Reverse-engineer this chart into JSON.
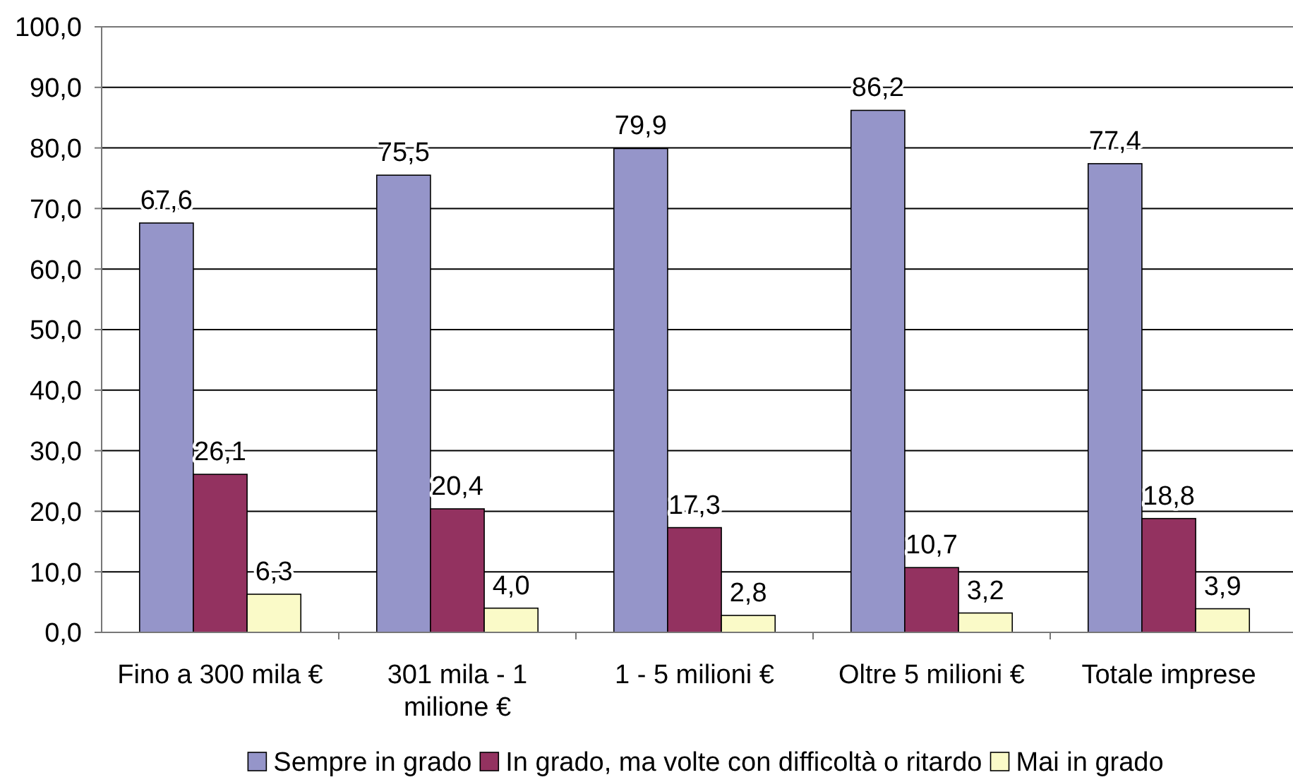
{
  "chart_data": {
    "type": "bar",
    "categories": [
      "Fino a 300 mila €",
      "301 mila - 1 milione €",
      "1 - 5 milioni €",
      "Oltre 5 milioni €",
      "Totale imprese"
    ],
    "series": [
      {
        "name": "Sempre in grado",
        "color": "#9595c9",
        "values": [
          67.6,
          75.5,
          79.9,
          86.2,
          77.4
        ],
        "value_labels": [
          "67,6",
          "75,5",
          "79,9",
          "86,2",
          "77,4"
        ]
      },
      {
        "name": "In grado, ma volte con difficoltà o ritardo",
        "color": "#933260",
        "values": [
          26.1,
          20.4,
          17.3,
          10.7,
          18.8
        ],
        "value_labels": [
          "26,1",
          "20,4",
          "17,3",
          "10,7",
          "18,8"
        ]
      },
      {
        "name": "Mai in grado",
        "color": "#fafac8",
        "values": [
          6.3,
          4.0,
          2.8,
          3.2,
          3.9
        ],
        "value_labels": [
          "6,3",
          "4,0",
          "2,8",
          "3,2",
          "3,9"
        ]
      }
    ],
    "ylim": [
      0,
      100
    ],
    "yticks": [
      {
        "value": 0,
        "label": "0,0"
      },
      {
        "value": 10,
        "label": "10,0"
      },
      {
        "value": 20,
        "label": "20,0"
      },
      {
        "value": 30,
        "label": "30,0"
      },
      {
        "value": 40,
        "label": "40,0"
      },
      {
        "value": 50,
        "label": "50,0"
      },
      {
        "value": 60,
        "label": "60,0"
      },
      {
        "value": 70,
        "label": "70,0"
      },
      {
        "value": 80,
        "label": "80,0"
      },
      {
        "value": 90,
        "label": "90,0"
      },
      {
        "value": 100,
        "label": "100,0"
      }
    ],
    "grid": "y",
    "legend": "bottom"
  }
}
